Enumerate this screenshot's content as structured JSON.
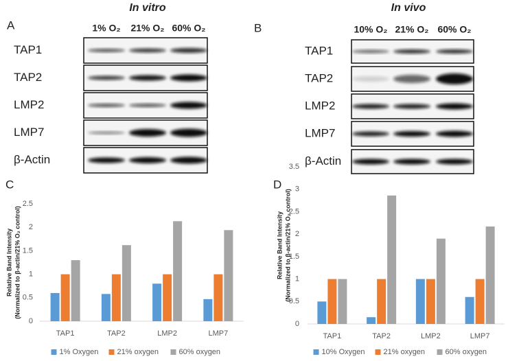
{
  "panels": [
    "A",
    "B",
    "C",
    "D"
  ],
  "blots": [
    {
      "title": "In vitro",
      "lanes": [
        "1% O₂",
        "21% O₂",
        "60% O₂"
      ],
      "proteins": [
        "TAP1",
        "TAP2",
        "LMP2",
        "LMP7",
        "β-Actin"
      ]
    },
    {
      "title": "In vivo",
      "lanes": [
        "10% O₂",
        "21% O₂",
        "60% O₂"
      ],
      "proteins": [
        "TAP1",
        "TAP2",
        "LMP2",
        "LMP7",
        "β-Actin"
      ]
    }
  ],
  "chart_data": [
    {
      "type": "bar",
      "y_label": "Relative Band Intensity",
      "y_label_2": "(Normalized to β-actin/21% O₂ control)",
      "categories": [
        "TAP1",
        "TAP2",
        "LMP2",
        "LMP7"
      ],
      "series": [
        {
          "name": "1% Oxygen",
          "color": "#5b9bd5",
          "values": [
            0.6,
            0.58,
            0.8,
            0.47
          ]
        },
        {
          "name": "21% oxygen",
          "color": "#ed7d31",
          "values": [
            1,
            1,
            1,
            1
          ]
        },
        {
          "name": "60% oxygen",
          "color": "#a5a5a5",
          "values": [
            1.3,
            1.62,
            2.13,
            1.94
          ]
        }
      ],
      "ylim": [
        0,
        2.5
      ],
      "yticks": [
        0,
        0.5,
        1,
        1.5,
        2,
        2.5
      ],
      "legend": "bottom"
    },
    {
      "type": "bar",
      "y_label": "Relative Band Intensity",
      "y_label_2": "(Normalized to β-actin/21% O₂ control)",
      "categories": [
        "TAP1",
        "TAP2",
        "LMP2",
        "LMP7"
      ],
      "series": [
        {
          "name": "10% Oxygen",
          "color": "#5b9bd5",
          "values": [
            0.5,
            0.15,
            1,
            0.6
          ]
        },
        {
          "name": "21% oxygen",
          "color": "#ed7d31",
          "values": [
            1,
            1,
            1,
            1
          ]
        },
        {
          "name": "60% oxygen",
          "color": "#a5a5a5",
          "values": [
            1,
            2.86,
            1.9,
            2.17
          ]
        }
      ],
      "ylim": [
        0,
        3.5
      ],
      "yticks": [
        0,
        0.5,
        1,
        1.5,
        2,
        2.5,
        3,
        3.5
      ],
      "legend": "bottom"
    }
  ]
}
